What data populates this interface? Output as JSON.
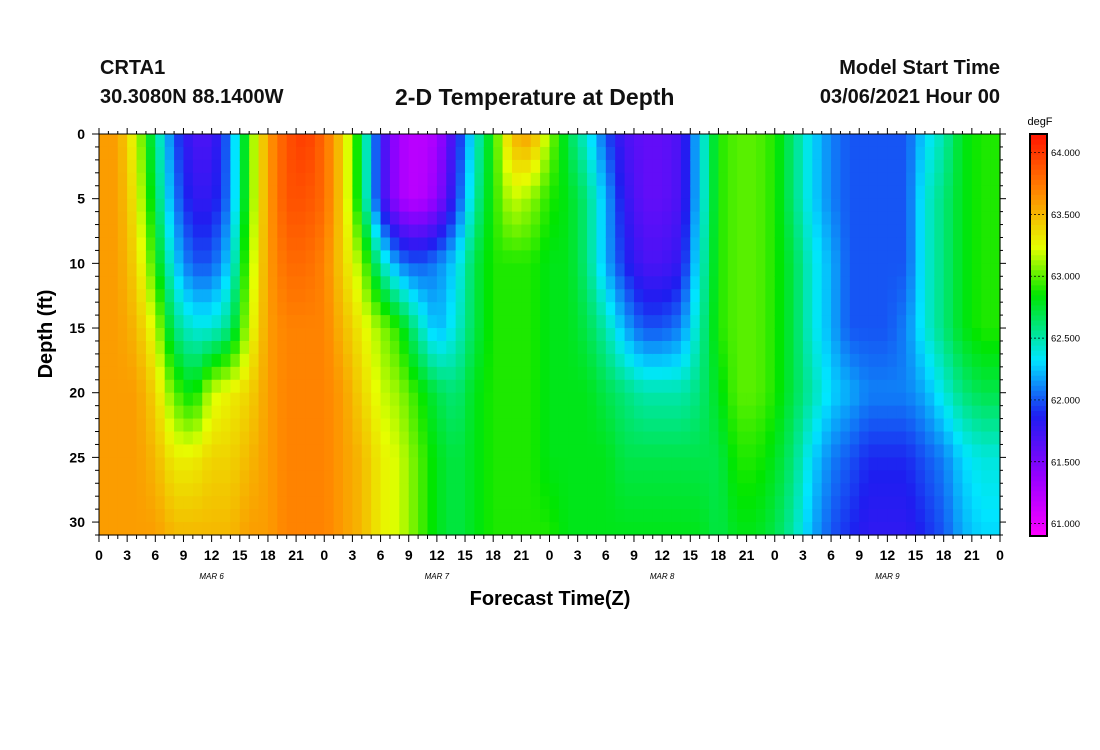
{
  "header": {
    "station": "CRTA1",
    "coords": "30.3080N 88.1400W",
    "title": "2-D Temperature at Depth",
    "start_label": "Model Start Time",
    "start_value": "03/06/2021 Hour 00"
  },
  "chart_data": {
    "type": "heatmap",
    "title": "2-D Temperature at Depth",
    "xlabel": "Forecast Time(Z)",
    "ylabel": "Depth (ft)",
    "colorbar_unit": "degF",
    "x_tick_labels": [
      "0",
      "3",
      "6",
      "9",
      "12",
      "15",
      "18",
      "21",
      "0",
      "3",
      "6",
      "9",
      "12",
      "15",
      "18",
      "21",
      "0",
      "3",
      "6",
      "9",
      "12",
      "15",
      "18",
      "21",
      "0",
      "3",
      "6",
      "9",
      "12",
      "15",
      "18",
      "21",
      "0"
    ],
    "x_range_hours": [
      0,
      96
    ],
    "date_labels": [
      {
        "label": "MAR  6",
        "hour": 12
      },
      {
        "label": "MAR  7",
        "hour": 36
      },
      {
        "label": "MAR  8",
        "hour": 60
      },
      {
        "label": "MAR  9",
        "hour": 84
      }
    ],
    "y_ticks": [
      0,
      5,
      10,
      15,
      20,
      25,
      30
    ],
    "y_tick_labels": [
      "0",
      "5",
      "10",
      "15",
      "20",
      "25",
      "30"
    ],
    "ylim": [
      0,
      31
    ],
    "y_inverted": true,
    "colorbar_ticks": [
      64.0,
      63.5,
      63.0,
      62.5,
      62.0,
      61.5,
      61.0
    ],
    "colorbar_tick_labels": [
      "64.000",
      "63.500",
      "63.000",
      "62.500",
      "62.000",
      "61.500",
      "61.000"
    ],
    "zlim": [
      60.9,
      64.15
    ],
    "depths_ft": [
      0,
      5,
      10,
      15,
      20,
      25,
      31
    ],
    "hours": [
      0,
      2,
      4,
      6,
      8,
      10,
      12,
      14,
      16,
      18,
      20,
      22,
      24,
      26,
      28,
      30,
      32,
      34,
      36,
      38,
      40,
      42,
      44,
      46,
      48,
      50,
      52,
      54,
      56,
      58,
      60,
      62,
      64,
      66,
      68,
      70,
      72,
      74,
      76,
      78,
      80,
      82,
      84,
      86,
      88,
      90,
      92,
      94,
      96
    ],
    "temperature_degF": [
      [
        63.6,
        63.6,
        63.2,
        62.6,
        62.0,
        61.7,
        61.7,
        62.1,
        63.0,
        63.6,
        63.9,
        64.0,
        63.8,
        63.4,
        62.7,
        61.8,
        61.3,
        61.2,
        61.3,
        61.8,
        62.4,
        62.9,
        63.5,
        63.6,
        63.1,
        62.7,
        62.4,
        62.0,
        61.7,
        61.6,
        61.6,
        61.7,
        62.3,
        62.9,
        63.0,
        63.0,
        62.9,
        62.6,
        62.3,
        62.1,
        62.0,
        62.0,
        62.0,
        62.0,
        62.3,
        62.5,
        62.8,
        62.9,
        62.9
      ],
      [
        63.6,
        63.6,
        63.3,
        62.7,
        62.1,
        61.8,
        61.8,
        62.1,
        63.0,
        63.6,
        63.9,
        63.9,
        63.8,
        63.4,
        62.7,
        61.8,
        61.3,
        61.2,
        61.4,
        61.9,
        62.5,
        62.9,
        63.2,
        63.1,
        62.9,
        62.8,
        62.6,
        62.2,
        61.8,
        61.6,
        61.6,
        61.7,
        62.3,
        62.9,
        63.0,
        63.0,
        62.9,
        62.6,
        62.3,
        62.1,
        62.0,
        62.0,
        62.0,
        62.0,
        62.4,
        62.6,
        62.8,
        62.9,
        62.9
      ],
      [
        63.6,
        63.6,
        63.4,
        62.9,
        62.3,
        62.0,
        62.0,
        62.3,
        63.1,
        63.6,
        63.8,
        63.8,
        63.7,
        63.4,
        63.1,
        62.5,
        62.1,
        62.0,
        62.1,
        62.3,
        62.7,
        62.9,
        62.9,
        62.9,
        62.8,
        62.8,
        62.6,
        62.2,
        61.9,
        61.7,
        61.7,
        61.8,
        62.4,
        62.9,
        63.0,
        63.0,
        62.9,
        62.7,
        62.4,
        62.2,
        62.0,
        62.0,
        62.0,
        62.0,
        62.4,
        62.6,
        62.8,
        62.9,
        62.9
      ],
      [
        63.6,
        63.6,
        63.5,
        63.2,
        62.6,
        62.4,
        62.4,
        62.6,
        63.2,
        63.6,
        63.7,
        63.7,
        63.7,
        63.5,
        63.3,
        63.1,
        62.9,
        62.5,
        62.2,
        62.4,
        62.7,
        62.9,
        62.9,
        62.9,
        62.8,
        62.8,
        62.7,
        62.5,
        62.2,
        62.0,
        62.0,
        62.1,
        62.5,
        62.9,
        63.0,
        63.0,
        62.9,
        62.7,
        62.4,
        62.2,
        62.0,
        62.0,
        62.0,
        62.1,
        62.4,
        62.6,
        62.8,
        62.9,
        62.9
      ],
      [
        63.6,
        63.6,
        63.6,
        63.4,
        63.0,
        62.8,
        63.2,
        63.3,
        63.4,
        63.6,
        63.7,
        63.7,
        63.7,
        63.6,
        63.4,
        63.2,
        63.1,
        62.9,
        62.7,
        62.6,
        62.8,
        62.9,
        62.9,
        62.9,
        62.8,
        62.8,
        62.8,
        62.7,
        62.6,
        62.5,
        62.5,
        62.5,
        62.6,
        62.8,
        63.0,
        63.0,
        62.9,
        62.7,
        62.5,
        62.3,
        62.2,
        62.1,
        62.1,
        62.1,
        62.2,
        62.4,
        62.6,
        62.7,
        62.7
      ],
      [
        63.6,
        63.6,
        63.6,
        63.5,
        63.3,
        63.3,
        63.4,
        63.4,
        63.5,
        63.6,
        63.7,
        63.7,
        63.7,
        63.6,
        63.5,
        63.3,
        63.2,
        63.0,
        62.8,
        62.7,
        62.8,
        62.9,
        62.9,
        62.9,
        62.8,
        62.8,
        62.8,
        62.8,
        62.7,
        62.7,
        62.7,
        62.7,
        62.7,
        62.7,
        62.9,
        62.9,
        62.8,
        62.6,
        62.3,
        62.1,
        62.0,
        61.9,
        61.9,
        61.9,
        62.0,
        62.1,
        62.3,
        62.4,
        62.4
      ],
      [
        63.6,
        63.6,
        63.6,
        63.6,
        63.5,
        63.5,
        63.5,
        63.5,
        63.6,
        63.6,
        63.7,
        63.7,
        63.7,
        63.6,
        63.5,
        63.3,
        63.2,
        63.0,
        62.8,
        62.7,
        62.8,
        62.9,
        62.9,
        62.9,
        62.9,
        62.8,
        62.8,
        62.8,
        62.8,
        62.8,
        62.8,
        62.8,
        62.8,
        62.7,
        62.8,
        62.8,
        62.7,
        62.5,
        62.2,
        62.0,
        61.9,
        61.8,
        61.8,
        61.8,
        61.9,
        62.0,
        62.2,
        62.3,
        62.3
      ]
    ]
  }
}
